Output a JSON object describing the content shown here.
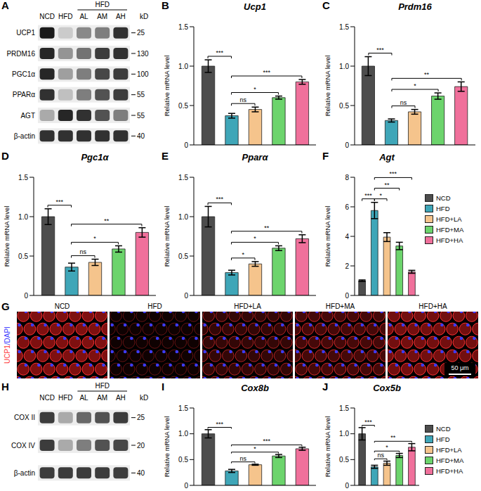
{
  "chart_data": [
    {
      "panel": "A",
      "type": "western_blot",
      "lanes": [
        "NCD",
        "HFD",
        "AL",
        "AM",
        "AH"
      ],
      "group": {
        "label": "HFD",
        "lanes": [
          2,
          3,
          4
        ]
      },
      "unit": "kD",
      "rows": [
        {
          "protein": "UCP1",
          "marker": 25,
          "intensity": [
            0.95,
            0.15,
            0.45,
            0.5,
            0.85
          ]
        },
        {
          "protein": "PRDM16",
          "marker": 130,
          "intensity": [
            0.9,
            0.4,
            0.55,
            0.8,
            0.85
          ]
        },
        {
          "protein": "PGC1α",
          "marker": 100,
          "intensity": [
            0.9,
            0.35,
            0.5,
            0.75,
            0.8
          ]
        },
        {
          "protein": "PPARα",
          "marker": 55,
          "intensity": [
            0.85,
            0.2,
            0.5,
            0.7,
            0.8
          ]
        },
        {
          "protein": "AGT",
          "marker": 55,
          "intensity": [
            0.3,
            0.9,
            0.85,
            0.7,
            0.5
          ]
        },
        {
          "protein": "β-actin",
          "marker": 40,
          "intensity": [
            0.85,
            0.85,
            0.85,
            0.85,
            0.85
          ]
        }
      ]
    },
    {
      "panel": "B",
      "type": "bar",
      "title": "Ucp1",
      "y_label": "Relative mRNA level",
      "categories": [
        "NCD",
        "HFD",
        "HFD+LA",
        "HFD+MA",
        "HFD+HA"
      ],
      "colors": [
        "#4d4d4d",
        "#3fa6b8",
        "#f5c48c",
        "#6cd46c",
        "#f0709b"
      ],
      "values": [
        1.0,
        0.37,
        0.45,
        0.6,
        0.8
      ],
      "errors": [
        0.08,
        0.03,
        0.03,
        0.02,
        0.03
      ],
      "ylim": [
        0,
        1.5
      ],
      "yticks": [
        0,
        0.5,
        {
          "value": 1,
          "label": "1.0"
        },
        1.5
      ],
      "grid": false,
      "tick_labels": "y",
      "comparisons": [
        {
          "from": 0,
          "to": 1,
          "label": "***"
        },
        {
          "from": 1,
          "to": 2,
          "label": "ns"
        },
        {
          "from": 1,
          "to": 3,
          "label": "*"
        },
        {
          "from": 1,
          "to": 4,
          "label": "***"
        }
      ]
    },
    {
      "panel": "C",
      "type": "bar",
      "title": "Prdm16",
      "y_label": "Relative mRNA level",
      "categories": [
        "NCD",
        "HFD",
        "HFD+LA",
        "HFD+MA",
        "HFD+HA"
      ],
      "colors": [
        "#4d4d4d",
        "#3fa6b8",
        "#f5c48c",
        "#6cd46c",
        "#f0709b"
      ],
      "values": [
        1.0,
        0.31,
        0.42,
        0.62,
        0.74
      ],
      "errors": [
        0.12,
        0.02,
        0.03,
        0.04,
        0.06
      ],
      "ylim": [
        0,
        1.5
      ],
      "yticks": [
        0,
        0.5,
        {
          "value": 1,
          "label": "1.0"
        },
        1.5
      ],
      "grid": false,
      "tick_labels": "y",
      "comparisons": [
        {
          "from": 0,
          "to": 1,
          "label": "***"
        },
        {
          "from": 1,
          "to": 2,
          "label": "ns"
        },
        {
          "from": 1,
          "to": 3,
          "label": "*"
        },
        {
          "from": 1,
          "to": 4,
          "label": "**"
        }
      ]
    },
    {
      "panel": "D",
      "type": "bar",
      "title": "Pgc1α",
      "y_label": "Relative mRNA level",
      "categories": [
        "NCD",
        "HFD",
        "HFD+LA",
        "HFD+MA",
        "HFD+HA"
      ],
      "colors": [
        "#4d4d4d",
        "#3fa6b8",
        "#f5c48c",
        "#6cd46c",
        "#f0709b"
      ],
      "values": [
        1.0,
        0.36,
        0.42,
        0.59,
        0.8
      ],
      "errors": [
        0.1,
        0.05,
        0.04,
        0.04,
        0.06
      ],
      "ylim": [
        0,
        1.5
      ],
      "yticks": [
        0,
        0.5,
        {
          "value": 1,
          "label": "1.0"
        },
        1.5
      ],
      "grid": false,
      "tick_labels": "y",
      "comparisons": [
        {
          "from": 0,
          "to": 1,
          "label": "***"
        },
        {
          "from": 1,
          "to": 2,
          "label": "ns"
        },
        {
          "from": 1,
          "to": 3,
          "label": "*"
        },
        {
          "from": 1,
          "to": 4,
          "label": "**"
        }
      ]
    },
    {
      "panel": "E",
      "type": "bar",
      "title": "Pparα",
      "y_label": "Relative mRNA level",
      "categories": [
        "NCD",
        "HFD",
        "HFD+LA",
        "HFD+MA",
        "HFD+HA"
      ],
      "colors": [
        "#4d4d4d",
        "#3fa6b8",
        "#f5c48c",
        "#6cd46c",
        "#f0709b"
      ],
      "values": [
        1.0,
        0.29,
        0.4,
        0.6,
        0.72
      ],
      "errors": [
        0.13,
        0.03,
        0.03,
        0.03,
        0.05
      ],
      "ylim": [
        0,
        1.5
      ],
      "yticks": [
        0,
        0.5,
        {
          "value": 1,
          "label": "1.0"
        },
        1.5
      ],
      "grid": false,
      "tick_labels": "y",
      "comparisons": [
        {
          "from": 0,
          "to": 1,
          "label": "***"
        },
        {
          "from": 1,
          "to": 2,
          "label": "*"
        },
        {
          "from": 1,
          "to": 3,
          "label": "*"
        },
        {
          "from": 1,
          "to": 4,
          "label": "**"
        }
      ]
    },
    {
      "panel": "F",
      "type": "bar",
      "title": "Agt",
      "y_label": "Relative mRNA level",
      "categories": [
        "NCD",
        "HFD",
        "HFD+LA",
        "HFD+MA",
        "HFD+HA"
      ],
      "colors": [
        "#4d4d4d",
        "#3fa6b8",
        "#f5c48c",
        "#6cd46c",
        "#f0709b"
      ],
      "values": [
        1.0,
        5.75,
        3.95,
        3.35,
        1.6
      ],
      "errors": [
        0.05,
        0.55,
        0.3,
        0.25,
        0.1
      ],
      "ylim": [
        0,
        8
      ],
      "yticks": [
        0,
        2,
        4,
        6,
        8
      ],
      "grid": false,
      "tick_labels": "y",
      "legend": "right",
      "comparisons": [
        {
          "from": 0,
          "to": 1,
          "label": "***"
        },
        {
          "from": 1,
          "to": 2,
          "label": "*"
        },
        {
          "from": 1,
          "to": 3,
          "label": "**"
        },
        {
          "from": 1,
          "to": 4,
          "label": "***"
        }
      ]
    },
    {
      "panel": "G",
      "type": "image",
      "stain": [
        {
          "text": "UCP1",
          "color": "#ff3b3b"
        },
        {
          "text": "/DAPI",
          "color": "#3c3cff"
        }
      ],
      "groups": [
        "NCD",
        "HFD",
        "HFD+LA",
        "HFD+MA",
        "HFD+HA"
      ],
      "ucp1_signal": [
        1,
        0.12,
        0.4,
        0.55,
        0.9
      ],
      "scale_bar": "50 μm"
    },
    {
      "panel": "H",
      "type": "western_blot",
      "lanes": [
        "NCD",
        "HFD",
        "AL",
        "AM",
        "AH"
      ],
      "group": {
        "label": "HFD",
        "lanes": [
          2,
          3,
          4
        ]
      },
      "unit": "kD",
      "rows": [
        {
          "protein": "COX II",
          "marker": 25,
          "intensity": [
            0.8,
            0.3,
            0.6,
            0.7,
            0.8
          ]
        },
        {
          "protein": "COX IV",
          "marker": 20,
          "intensity": [
            0.8,
            0.3,
            0.5,
            0.7,
            0.75
          ]
        },
        {
          "protein": "β-actin",
          "marker": 40,
          "intensity": [
            0.8,
            0.8,
            0.8,
            0.8,
            0.8
          ]
        }
      ]
    },
    {
      "panel": "I",
      "type": "bar",
      "title": "Cox8b",
      "y_label": "Relative mRNA level",
      "categories": [
        "NCD",
        "HFD",
        "HFD+LA",
        "HFD+MA",
        "HFD+HA"
      ],
      "colors": [
        "#4d4d4d",
        "#3fa6b8",
        "#f5c48c",
        "#6cd46c",
        "#f0709b"
      ],
      "values": [
        1.0,
        0.28,
        0.4,
        0.57,
        0.71
      ],
      "errors": [
        0.08,
        0.03,
        0.01,
        0.03,
        0.03
      ],
      "ylim": [
        0,
        1.5
      ],
      "yticks": [
        0,
        0.5,
        {
          "value": 1,
          "label": "1.0"
        },
        1.5
      ],
      "grid": false,
      "tick_labels": "y",
      "comparisons": [
        {
          "from": 0,
          "to": 1,
          "label": "***"
        },
        {
          "from": 1,
          "to": 2,
          "label": "ns"
        },
        {
          "from": 1,
          "to": 3,
          "label": "*"
        },
        {
          "from": 1,
          "to": 4,
          "label": "***"
        }
      ]
    },
    {
      "panel": "J",
      "type": "bar",
      "title": "Cox5b",
      "y_label": "Relative mRNA level",
      "categories": [
        "NCD",
        "HFD",
        "HFD+LA",
        "HFD+MA",
        "HFD+HA"
      ],
      "colors": [
        "#4d4d4d",
        "#3fa6b8",
        "#f5c48c",
        "#6cd46c",
        "#f0709b"
      ],
      "values": [
        1.0,
        0.36,
        0.43,
        0.58,
        0.74
      ],
      "errors": [
        0.12,
        0.03,
        0.04,
        0.04,
        0.07
      ],
      "ylim": [
        0,
        1.5
      ],
      "yticks": [
        0,
        0.5,
        {
          "value": 1,
          "label": "1.0"
        },
        1.5
      ],
      "grid": false,
      "tick_labels": "y",
      "legend": "right",
      "comparisons": [
        {
          "from": 0,
          "to": 1,
          "label": "***"
        },
        {
          "from": 1,
          "to": 2,
          "label": "ns"
        },
        {
          "from": 1,
          "to": 3,
          "label": "*"
        },
        {
          "from": 1,
          "to": 4,
          "label": "**"
        }
      ]
    }
  ]
}
